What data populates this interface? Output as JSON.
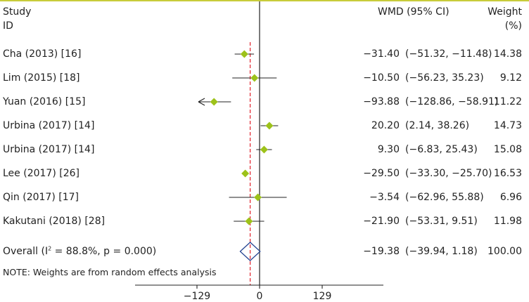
{
  "header": {
    "study_line1": "Study",
    "study_line2": "ID",
    "effect": "WMD (95% CI)",
    "weight_line1": "Weight",
    "weight_line2": "(%)"
  },
  "overall": {
    "label_prefix": "Overall (I",
    "label_sup": "2",
    "label_suffix": " = 88.8%, p = 0.000)",
    "wmd": "−19.38",
    "ci": "(−39.94, 1.18)",
    "weight": "100.00"
  },
  "note": "NOTE: Weights are from random effects analysis",
  "colors": {
    "accent": "#c8cc3a",
    "diamond": "#9dc21a",
    "overall_diamond": "#1f3f8f",
    "reference_line": "#e2202a",
    "ink": "#222222"
  },
  "chart_data": {
    "type": "forest",
    "measure": "WMD",
    "axis": {
      "ticks": [
        -129,
        0,
        129
      ],
      "tick_labels": [
        "−129",
        "0",
        "129"
      ],
      "xlim": [
        -259,
        259
      ]
    },
    "studies": [
      {
        "label": "Cha (2013) [16]",
        "wmd": -31.4,
        "lo": -51.32,
        "hi": -11.48,
        "wmd_text": "−31.40",
        "ci_text": "(−51.32, −11.48)",
        "weight": "14.38"
      },
      {
        "label": "Lim (2015) [18]",
        "wmd": -10.5,
        "lo": -56.23,
        "hi": 35.23,
        "wmd_text": "−10.50",
        "ci_text": "(−56.23, 35.23)",
        "weight": "9.12"
      },
      {
        "label": "Yuan (2016) [15]",
        "wmd": -93.88,
        "lo": -128.86,
        "hi": -58.91,
        "wmd_text": "−93.88",
        "ci_text": "(−128.86, −58.91)",
        "weight": "11.22",
        "arrow_left": true
      },
      {
        "label": "Urbina (2017) [14]",
        "wmd": 20.2,
        "lo": 2.14,
        "hi": 38.26,
        "wmd_text": "20.20",
        "ci_text": "(2.14, 38.26)",
        "weight": "14.73"
      },
      {
        "label": "Urbina (2017) [14]",
        "wmd": 9.3,
        "lo": -6.83,
        "hi": 25.43,
        "wmd_text": "9.30",
        "ci_text": "(−6.83, 25.43)",
        "weight": "15.08"
      },
      {
        "label": "Lee (2017) [26]",
        "wmd": -29.5,
        "lo": -33.3,
        "hi": -25.7,
        "wmd_text": "−29.50",
        "ci_text": "(−33.30, −25.70)",
        "weight": "16.53"
      },
      {
        "label": "Qin (2017) [17]",
        "wmd": -3.54,
        "lo": -62.96,
        "hi": 55.88,
        "wmd_text": "−3.54",
        "ci_text": "(−62.96, 55.88)",
        "weight": "6.96"
      },
      {
        "label": "Kakutani (2018) [28]",
        "wmd": -21.9,
        "lo": -53.31,
        "hi": 9.51,
        "wmd_text": "−21.90",
        "ci_text": "(−53.31, 9.51)",
        "weight": "11.98"
      }
    ],
    "overall": {
      "wmd": -19.38,
      "lo": -39.94,
      "hi": 1.18
    }
  }
}
